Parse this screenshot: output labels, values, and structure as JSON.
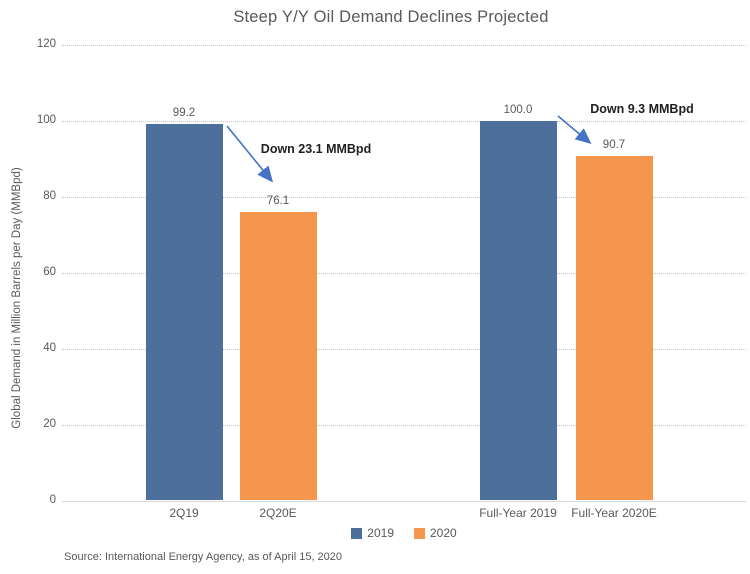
{
  "chart_data": {
    "type": "bar",
    "title": "Steep Y/Y Oil Demand Declines Projected",
    "xlabel": "",
    "ylabel": "Global Demand in Million Barrels per Day (MMBpd)",
    "ylim": [
      0,
      120
    ],
    "yticks": [
      0,
      20,
      40,
      60,
      80,
      100,
      120
    ],
    "grid": "horizontal dotted",
    "legend_position": "bottom-center",
    "categories": [
      "2Q19",
      "2Q20E",
      "Full-Year 2019",
      "Full-Year 2020E"
    ],
    "bars": [
      {
        "category": "2Q19",
        "series": "2019",
        "value": 99.2,
        "label": "99.2",
        "color": "#4C6F9C"
      },
      {
        "category": "2Q20E",
        "series": "2020",
        "value": 76.1,
        "label": "76.1",
        "color": "#F6954E"
      },
      {
        "category": "Full-Year 2019",
        "series": "2019",
        "value": 100.0,
        "label": "100.0",
        "color": "#4C6F9C"
      },
      {
        "category": "Full-Year 2020E",
        "series": "2020",
        "value": 90.7,
        "label": "90.7",
        "color": "#F6954E"
      }
    ],
    "series": [
      {
        "name": "2019",
        "color": "#4C6F9C"
      },
      {
        "name": "2020",
        "color": "#F6954E"
      }
    ],
    "annotations": [
      {
        "text": "Down 23.1 MMBpd"
      },
      {
        "text": "Down 9.3 MMBpd"
      }
    ],
    "arrow_color": "#4472C4"
  },
  "footer": {
    "source": "Source: International Energy Agency, as of April 15, 2020"
  }
}
